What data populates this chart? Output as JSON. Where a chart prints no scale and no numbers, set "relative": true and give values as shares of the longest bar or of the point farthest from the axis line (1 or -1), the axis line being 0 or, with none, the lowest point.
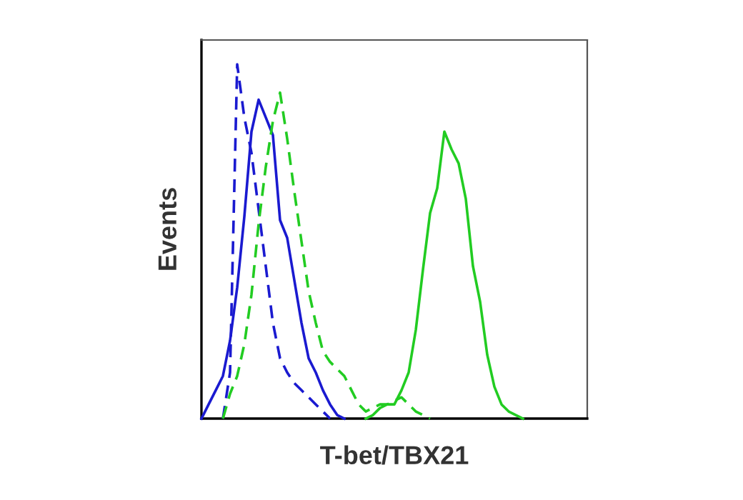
{
  "chart_data": {
    "type": "line",
    "relative": true,
    "xlabel": "T-bet/TBX21",
    "ylabel": "Events",
    "legend": false,
    "categories": [
      null,
      null,
      null,
      null,
      null,
      null,
      null,
      null,
      null,
      null,
      null,
      null,
      null,
      null,
      null,
      null,
      null,
      null,
      null,
      null,
      null,
      null,
      null,
      null,
      null,
      null,
      null,
      null,
      null,
      null,
      null,
      null,
      null,
      null,
      null,
      null,
      null,
      null,
      null,
      null,
      null,
      null,
      null,
      null,
      null,
      null,
      null,
      null,
      null,
      null,
      null,
      null,
      null,
      null,
      null
    ],
    "series": [
      {
        "color": "#1a1ad0",
        "line_style": "solid",
        "values": [
          0,
          0.04,
          0.08,
          0.12,
          0.22,
          0.37,
          0.57,
          0.81,
          0.9,
          0.85,
          0.8,
          0.56,
          0.51,
          0.39,
          0.27,
          0.17,
          0.13,
          0.08,
          0.04,
          0.01,
          0,
          null,
          null,
          null,
          null,
          null,
          null,
          null,
          null,
          null,
          null,
          null,
          null,
          null,
          null,
          null,
          null,
          null,
          null,
          null,
          null,
          null,
          null,
          null,
          null,
          null,
          null,
          null,
          null,
          null,
          null,
          null,
          null,
          null,
          null
        ]
      },
      {
        "color": "#1a1ad0",
        "line_style": "dashed",
        "values": [
          null,
          null,
          null,
          0,
          0.13,
          1,
          0.85,
          0.75,
          0.59,
          0.43,
          0.27,
          0.17,
          0.13,
          0.1,
          0.08,
          0.06,
          0.04,
          0.02,
          0,
          null,
          null,
          null,
          null,
          null,
          null,
          null,
          null,
          null,
          null,
          null,
          null,
          null,
          null,
          null,
          null,
          null,
          null,
          null,
          null,
          null,
          null,
          null,
          null,
          null,
          null,
          null,
          null,
          null,
          null,
          null,
          null,
          null,
          null,
          null,
          null
        ]
      },
      {
        "color": "#22cc22",
        "line_style": "dashed",
        "values": [
          null,
          null,
          null,
          0,
          0.07,
          0.12,
          0.21,
          0.35,
          0.55,
          0.71,
          0.84,
          0.92,
          0.79,
          0.64,
          0.5,
          0.36,
          0.27,
          0.19,
          0.16,
          0.14,
          0.12,
          0.08,
          0.04,
          0.02,
          0.03,
          0.04,
          0.04,
          0.05,
          0.06,
          0.04,
          0.02,
          0.01,
          0,
          null,
          null,
          null,
          null,
          null,
          null,
          null,
          null,
          null,
          null,
          null,
          null,
          null,
          null,
          null,
          null,
          null,
          null,
          null,
          null,
          null,
          null
        ]
      },
      {
        "color": "#22cc22",
        "line_style": "solid",
        "values": [
          null,
          null,
          null,
          null,
          null,
          null,
          null,
          null,
          null,
          null,
          null,
          null,
          null,
          null,
          null,
          null,
          null,
          null,
          null,
          null,
          null,
          null,
          null,
          0,
          0.01,
          0.03,
          0.04,
          0.04,
          0.08,
          0.13,
          0.25,
          0.42,
          0.58,
          0.65,
          0.81,
          0.76,
          0.72,
          0.62,
          0.43,
          0.33,
          0.18,
          0.09,
          0.04,
          0.02,
          0.01,
          0,
          null,
          null,
          null,
          null,
          null,
          null,
          null,
          null,
          null
        ]
      }
    ]
  }
}
